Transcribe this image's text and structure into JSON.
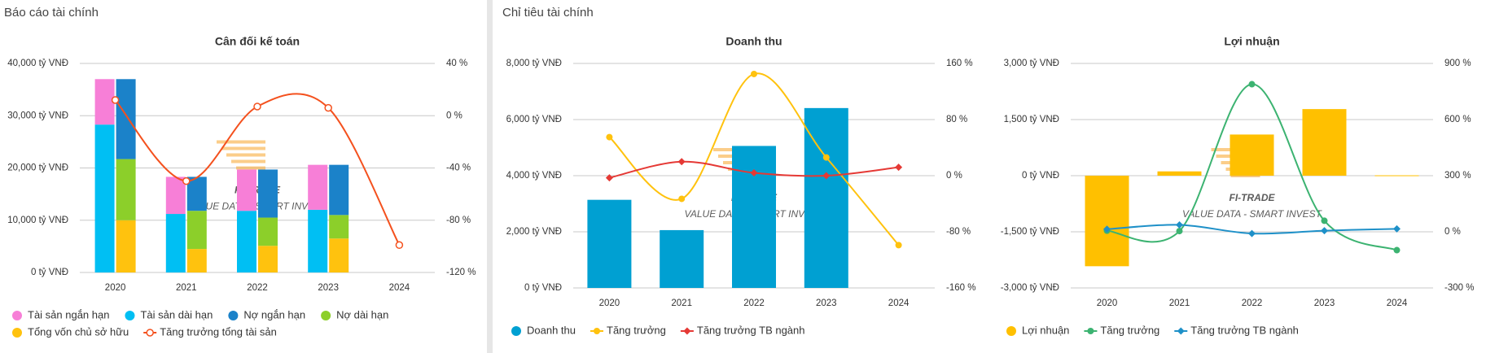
{
  "panels": [
    {
      "title": "Báo cáo tài chính"
    },
    {
      "title": "Chỉ tiêu tài chính"
    }
  ],
  "watermark": {
    "name": "FI-TRADE",
    "tagline": "VALUE DATA - SMART INVEST"
  },
  "chart_data": [
    {
      "type": "bar",
      "title": "Cân đối kế toán",
      "categories": [
        "2020",
        "2021",
        "2022",
        "2023",
        "2024"
      ],
      "ylim": [
        0,
        40000
      ],
      "yticks": [
        {
          "value": 0,
          "label": "0 tỷ VNĐ"
        },
        {
          "value": 10000,
          "label": "10,000 tỷ VNĐ"
        },
        {
          "value": 20000,
          "label": "20,000 tỷ VNĐ"
        },
        {
          "value": 30000,
          "label": "30,000 tỷ VNĐ"
        },
        {
          "value": 40000,
          "label": "40,000 tỷ VNĐ"
        }
      ],
      "y2lim": [
        -120,
        40
      ],
      "y2ticks": [
        {
          "value": -120,
          "label": "-120 %"
        },
        {
          "value": -80,
          "label": "-80 %"
        },
        {
          "value": -40,
          "label": "-40 %"
        },
        {
          "value": 0,
          "label": "0 %"
        },
        {
          "value": 40,
          "label": "40 %"
        }
      ],
      "grid": true,
      "series": [
        {
          "name": "Tài sản ngắn hạn",
          "kind": "bar",
          "stack": 0,
          "color": "#f77fd7",
          "values": [
            8700,
            7100,
            7900,
            8600,
            null
          ]
        },
        {
          "name": "Tài sản dài hạn",
          "kind": "bar",
          "stack": 0,
          "color": "#00bff3",
          "values": [
            28300,
            11200,
            11800,
            12000,
            null
          ]
        },
        {
          "name": "Nợ ngắn hạn",
          "kind": "bar",
          "stack": 1,
          "color": "#1b82c9",
          "values": [
            15300,
            6500,
            9200,
            9600,
            null
          ]
        },
        {
          "name": "Nợ dài hạn",
          "kind": "bar",
          "stack": 1,
          "color": "#8ccf2a",
          "values": [
            11700,
            7300,
            5400,
            4500,
            null
          ]
        },
        {
          "name": "Tổng vốn chủ sở hữu",
          "kind": "bar",
          "stack": 1,
          "color": "#ffc20e",
          "values": [
            10000,
            4500,
            5100,
            6500,
            null
          ]
        },
        {
          "name": "Tăng trưởng tổng tài sản",
          "kind": "line",
          "axis": "y2",
          "marker": "hollow",
          "color": "#f4511e",
          "values": [
            12,
            -50,
            7,
            6,
            -99
          ]
        }
      ]
    },
    {
      "type": "bar",
      "title": "Doanh thu",
      "categories": [
        "2020",
        "2021",
        "2022",
        "2023",
        "2024"
      ],
      "ylim": [
        0,
        8000
      ],
      "yticks": [
        {
          "value": 0,
          "label": "0 tỷ VNĐ"
        },
        {
          "value": 2000,
          "label": "2,000 tỷ VNĐ"
        },
        {
          "value": 4000,
          "label": "4,000 tỷ VNĐ"
        },
        {
          "value": 6000,
          "label": "6,000 tỷ VNĐ"
        },
        {
          "value": 8000,
          "label": "8,000 tỷ VNĐ"
        }
      ],
      "y2lim": [
        -160,
        160
      ],
      "y2ticks": [
        {
          "value": -160,
          "label": "-160 %"
        },
        {
          "value": -80,
          "label": "-80 %"
        },
        {
          "value": 0,
          "label": "0 %"
        },
        {
          "value": 80,
          "label": "80 %"
        },
        {
          "value": 160,
          "label": "160 %"
        }
      ],
      "grid": true,
      "series": [
        {
          "name": "Doanh thu",
          "kind": "bar",
          "stack": 0,
          "color": "#00a0d2",
          "values": [
            3140,
            2060,
            5060,
            6410,
            null
          ]
        },
        {
          "name": "Tăng trưởng",
          "kind": "line",
          "axis": "y2",
          "marker": "circle",
          "color": "#ffc20e",
          "values": [
            55,
            -33,
            145,
            26,
            -99
          ]
        },
        {
          "name": "Tăng trưởng TB ngành",
          "kind": "line",
          "axis": "y2",
          "marker": "diamond",
          "color": "#e53935",
          "values": [
            -3,
            20,
            4,
            0,
            12
          ]
        }
      ]
    },
    {
      "type": "bar",
      "title": "Lợi nhuận",
      "categories": [
        "2020",
        "2021",
        "2022",
        "2023",
        "2024"
      ],
      "ylim": [
        -3000,
        3000
      ],
      "yticks": [
        {
          "value": -3000,
          "label": "-3,000 tỷ VNĐ"
        },
        {
          "value": -1500,
          "label": "-1,500 tỷ VNĐ"
        },
        {
          "value": 0,
          "label": "0 tỷ VNĐ"
        },
        {
          "value": 1500,
          "label": "1,500 tỷ VNĐ"
        },
        {
          "value": 3000,
          "label": "3,000 tỷ VNĐ"
        }
      ],
      "y2lim": [
        -300,
        900
      ],
      "y2ticks": [
        {
          "value": -300,
          "label": "-300 %"
        },
        {
          "value": 0,
          "label": "0 %"
        },
        {
          "value": 300,
          "label": "300 %"
        },
        {
          "value": 600,
          "label": "600 %"
        },
        {
          "value": 900,
          "label": "900 %"
        }
      ],
      "grid": true,
      "series": [
        {
          "name": "Lợi nhuận",
          "kind": "bar",
          "stack": 0,
          "color": "#ffc000",
          "values": [
            -2420,
            115,
            1100,
            1780,
            10
          ]
        },
        {
          "name": "Tăng trưởng",
          "kind": "line",
          "axis": "y2",
          "marker": "circle",
          "color": "#3cb371",
          "values": [
            6,
            4,
            789,
            59,
            -98
          ]
        },
        {
          "name": "Tăng trưởng TB ngành",
          "kind": "line",
          "axis": "y2",
          "marker": "diamond",
          "color": "#1e90c8",
          "values": [
            14,
            37,
            -9,
            6,
            16
          ]
        }
      ]
    }
  ]
}
